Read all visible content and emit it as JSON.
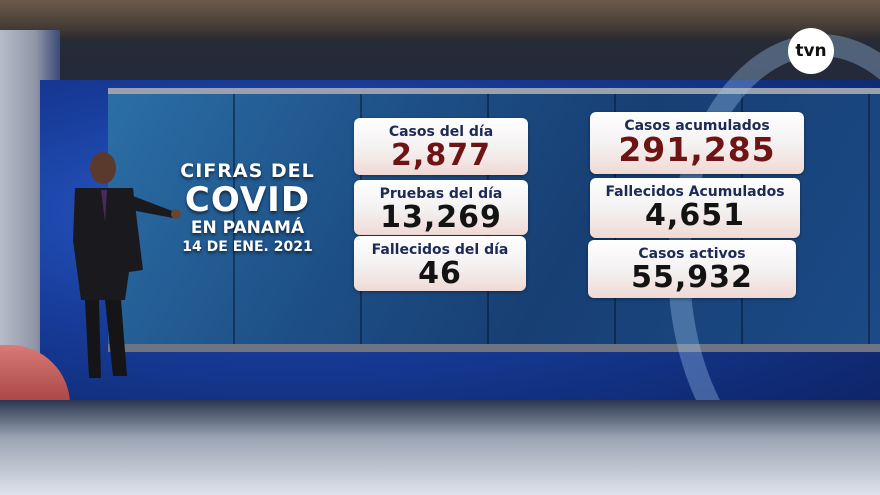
{
  "broadcast": {
    "channel_logo": "tvn"
  },
  "title": {
    "line1": "CIFRAS DEL",
    "line2": "COVID",
    "line3": "EN PANAMÁ",
    "date": "14 DE ENE. 2021"
  },
  "cards": [
    {
      "label": "Casos del día",
      "value": "2,877"
    },
    {
      "label": "Pruebas del día",
      "value": "13,269"
    },
    {
      "label": "Fallecidos del día",
      "value": "46"
    },
    {
      "label": "Casos acumulados",
      "value": "291,285"
    },
    {
      "label": "Fallecidos Acumulados",
      "value": "4,651"
    },
    {
      "label": "Casos activos",
      "value": "55,932"
    }
  ],
  "colors": {
    "screen_blue": "#1d4f86",
    "card_white": "#ffffff",
    "value_red": "#6e1414",
    "label_navy": "#1c2a55"
  }
}
